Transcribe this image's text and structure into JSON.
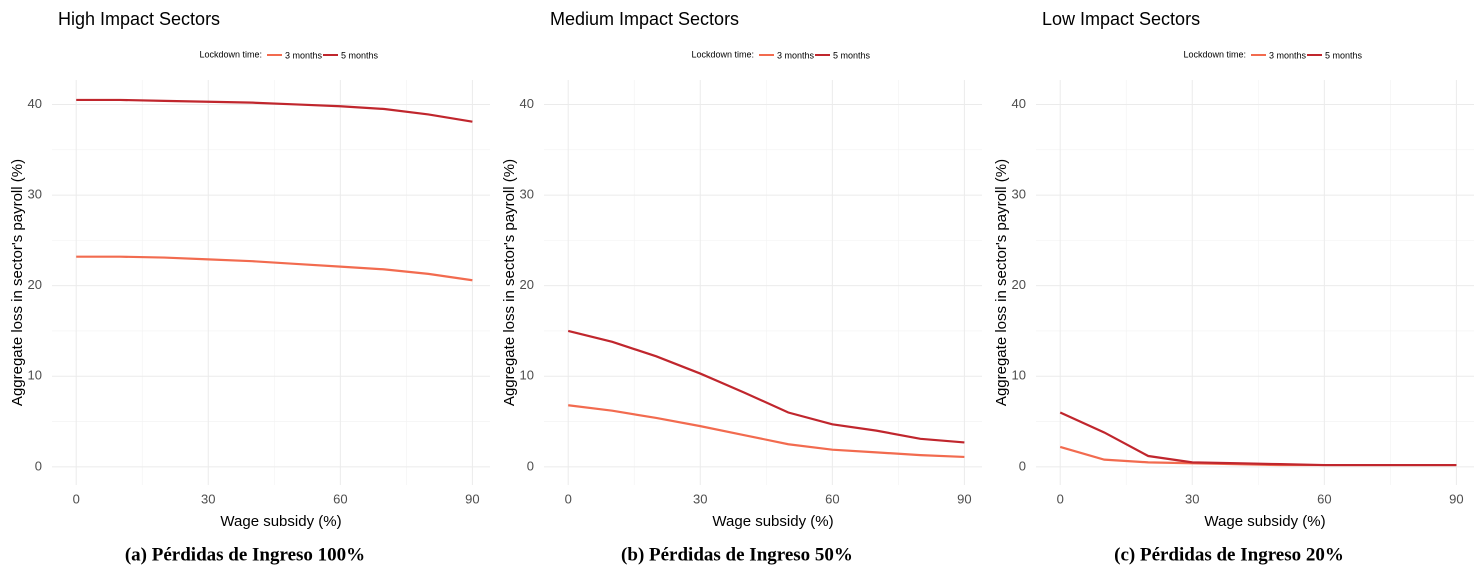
{
  "chart_data": [
    {
      "type": "line",
      "title": "High Impact Sectors",
      "legend_title": "Lockdown time:",
      "xlabel": "Wage subsidy (%)",
      "ylabel": "Aggregate loss in sector's payroll (%)",
      "caption": "(a) Pérdidas de Ingreso 100%",
      "x": [
        0,
        10,
        20,
        30,
        40,
        50,
        60,
        70,
        80,
        90
      ],
      "series": [
        {
          "name": "3 months",
          "color": "#f26b4f",
          "values": [
            23.2,
            23.2,
            23.1,
            22.9,
            22.7,
            22.4,
            22.1,
            21.8,
            21.3,
            20.6
          ]
        },
        {
          "name": "5 months",
          "color": "#c0262d",
          "values": [
            40.5,
            40.5,
            40.4,
            40.3,
            40.2,
            40.0,
            39.8,
            39.5,
            38.9,
            38.1
          ]
        }
      ],
      "xlim": [
        -5.5,
        94
      ],
      "xticks": [
        0,
        30,
        60,
        90
      ],
      "xminor": [
        15,
        45,
        75
      ],
      "ylim": [
        -2,
        42.7
      ],
      "yticks": [
        0,
        10,
        20,
        30,
        40
      ],
      "yminor": [
        5,
        15,
        25,
        35
      ],
      "grid": true
    },
    {
      "type": "line",
      "title": "Medium Impact Sectors",
      "legend_title": "Lockdown time:",
      "xlabel": "Wage subsidy (%)",
      "ylabel": "Aggregate loss in sector's payroll (%)",
      "caption": "(b) Pérdidas de Ingreso 50%",
      "x": [
        0,
        10,
        20,
        30,
        40,
        50,
        60,
        70,
        80,
        90
      ],
      "series": [
        {
          "name": "3 months",
          "color": "#f26b4f",
          "values": [
            6.8,
            6.2,
            5.4,
            4.5,
            3.5,
            2.5,
            1.9,
            1.6,
            1.3,
            1.1
          ]
        },
        {
          "name": "5 months",
          "color": "#c0262d",
          "values": [
            15.0,
            13.8,
            12.2,
            10.3,
            8.2,
            6.0,
            4.7,
            4.0,
            3.1,
            2.7
          ]
        }
      ],
      "xlim": [
        -5.5,
        94
      ],
      "xticks": [
        0,
        30,
        60,
        90
      ],
      "xminor": [
        15,
        45,
        75
      ],
      "ylim": [
        -2,
        42.7
      ],
      "yticks": [
        0,
        10,
        20,
        30,
        40
      ],
      "yminor": [
        5,
        15,
        25,
        35
      ],
      "grid": true
    },
    {
      "type": "line",
      "title": "Low Impact Sectors",
      "legend_title": "Lockdown time:",
      "xlabel": "Wage subsidy (%)",
      "ylabel": "Aggregate loss in sector's payroll (%)",
      "caption": "(c) Pérdidas de Ingreso 20%",
      "x": [
        0,
        10,
        20,
        30,
        40,
        50,
        60,
        70,
        80,
        90
      ],
      "series": [
        {
          "name": "3 months",
          "color": "#f26b4f",
          "values": [
            2.2,
            0.8,
            0.5,
            0.4,
            0.3,
            0.2,
            0.2,
            0.2,
            0.2,
            0.2
          ]
        },
        {
          "name": "5 months",
          "color": "#c0262d",
          "values": [
            6.0,
            3.8,
            1.2,
            0.5,
            0.4,
            0.3,
            0.2,
            0.2,
            0.2,
            0.2
          ]
        }
      ],
      "xlim": [
        -5.5,
        94
      ],
      "xticks": [
        0,
        30,
        60,
        90
      ],
      "xminor": [
        15,
        45,
        75
      ],
      "ylim": [
        -2,
        42.7
      ],
      "yticks": [
        0,
        10,
        20,
        30,
        40
      ],
      "yminor": [
        5,
        15,
        25,
        35
      ],
      "grid": true
    }
  ]
}
